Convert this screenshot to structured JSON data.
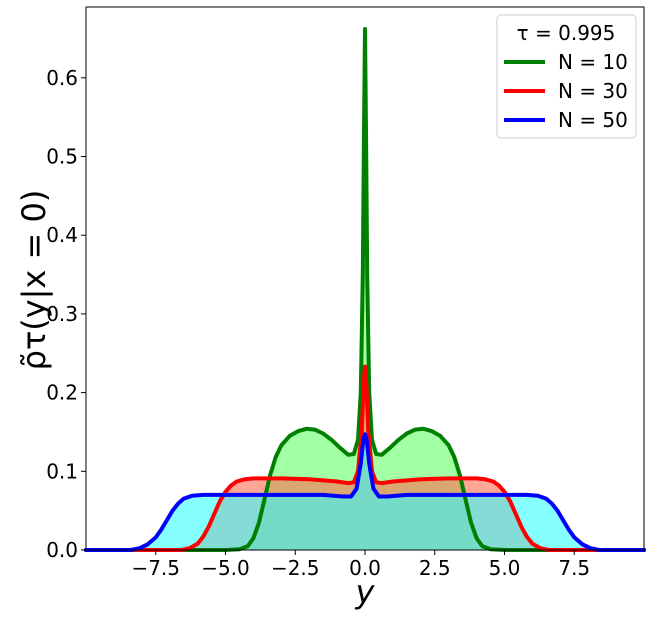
{
  "chart_data": {
    "type": "area",
    "xlabel": "y",
    "ylabel": "ρ̃τ(y|x = 0)",
    "xlim": [
      -10,
      10
    ],
    "ylim": [
      0,
      0.69
    ],
    "x_ticks": [
      -7.5,
      -5.0,
      -2.5,
      0.0,
      2.5,
      5.0,
      7.5
    ],
    "x_tick_labels": [
      "−7.5",
      "−5.0",
      "−2.5",
      "0.0",
      "2.5",
      "5.0",
      "7.5"
    ],
    "y_ticks": [
      0.0,
      0.1,
      0.2,
      0.3,
      0.4,
      0.5,
      0.6
    ],
    "y_tick_labels": [
      "0.0",
      "0.1",
      "0.2",
      "0.3",
      "0.4",
      "0.5",
      "0.6"
    ],
    "grid": false,
    "legend": {
      "placement": "top-right",
      "title": "τ =  0.995",
      "entries": [
        {
          "label": "N = 10",
          "color": "#008000"
        },
        {
          "label": "N = 30",
          "color": "#ff0000"
        },
        {
          "label": "N = 50",
          "color": "#0000ff"
        }
      ]
    },
    "series": [
      {
        "name": "N = 10",
        "color": "#008000",
        "fill": "#66ff66",
        "points": [
          [
            -10,
            0
          ],
          [
            -5,
            0
          ],
          [
            -4.5,
            0.001
          ],
          [
            -4.2,
            0.005
          ],
          [
            -4.0,
            0.015
          ],
          [
            -3.8,
            0.035
          ],
          [
            -3.6,
            0.065
          ],
          [
            -3.4,
            0.095
          ],
          [
            -3.2,
            0.118
          ],
          [
            -3.0,
            0.133
          ],
          [
            -2.7,
            0.145
          ],
          [
            -2.4,
            0.151
          ],
          [
            -2.1,
            0.154
          ],
          [
            -1.8,
            0.153
          ],
          [
            -1.5,
            0.148
          ],
          [
            -1.2,
            0.14
          ],
          [
            -0.9,
            0.13
          ],
          [
            -0.6,
            0.121
          ],
          [
            -0.4,
            0.122
          ],
          [
            -0.25,
            0.14
          ],
          [
            -0.15,
            0.2
          ],
          [
            -0.08,
            0.35
          ],
          [
            -0.04,
            0.52
          ],
          [
            0,
            0.662
          ],
          [
            0.04,
            0.52
          ],
          [
            0.08,
            0.35
          ],
          [
            0.15,
            0.2
          ],
          [
            0.25,
            0.14
          ],
          [
            0.4,
            0.122
          ],
          [
            0.6,
            0.121
          ],
          [
            0.9,
            0.13
          ],
          [
            1.2,
            0.14
          ],
          [
            1.5,
            0.148
          ],
          [
            1.8,
            0.153
          ],
          [
            2.1,
            0.154
          ],
          [
            2.4,
            0.151
          ],
          [
            2.7,
            0.145
          ],
          [
            3.0,
            0.133
          ],
          [
            3.2,
            0.118
          ],
          [
            3.4,
            0.095
          ],
          [
            3.6,
            0.065
          ],
          [
            3.8,
            0.035
          ],
          [
            4.0,
            0.015
          ],
          [
            4.2,
            0.005
          ],
          [
            4.5,
            0.001
          ],
          [
            5,
            0
          ],
          [
            10,
            0
          ]
        ]
      },
      {
        "name": "N = 30",
        "color": "#ff0000",
        "fill": "#ff6a50",
        "points": [
          [
            -10,
            0
          ],
          [
            -6.6,
            0
          ],
          [
            -6.3,
            0.002
          ],
          [
            -6.0,
            0.008
          ],
          [
            -5.8,
            0.017
          ],
          [
            -5.6,
            0.03
          ],
          [
            -5.4,
            0.046
          ],
          [
            -5.2,
            0.062
          ],
          [
            -5.0,
            0.074
          ],
          [
            -4.8,
            0.082
          ],
          [
            -4.6,
            0.087
          ],
          [
            -4.3,
            0.09
          ],
          [
            -4.0,
            0.091
          ],
          [
            -3.0,
            0.091
          ],
          [
            -2.0,
            0.09
          ],
          [
            -1.0,
            0.087
          ],
          [
            -0.6,
            0.085
          ],
          [
            -0.4,
            0.086
          ],
          [
            -0.25,
            0.1
          ],
          [
            -0.12,
            0.15
          ],
          [
            -0.05,
            0.21
          ],
          [
            0,
            0.233
          ],
          [
            0.05,
            0.21
          ],
          [
            0.12,
            0.15
          ],
          [
            0.25,
            0.1
          ],
          [
            0.4,
            0.086
          ],
          [
            0.6,
            0.085
          ],
          [
            1.0,
            0.087
          ],
          [
            2.0,
            0.09
          ],
          [
            3.0,
            0.091
          ],
          [
            4.0,
            0.091
          ],
          [
            4.3,
            0.09
          ],
          [
            4.6,
            0.087
          ],
          [
            4.8,
            0.082
          ],
          [
            5.0,
            0.074
          ],
          [
            5.2,
            0.062
          ],
          [
            5.4,
            0.046
          ],
          [
            5.6,
            0.03
          ],
          [
            5.8,
            0.017
          ],
          [
            6.0,
            0.008
          ],
          [
            6.3,
            0.002
          ],
          [
            6.6,
            0
          ],
          [
            10,
            0
          ]
        ]
      },
      {
        "name": "N = 50",
        "color": "#0000ff",
        "fill": "#33ffff",
        "points": [
          [
            -10,
            0
          ],
          [
            -8.4,
            0
          ],
          [
            -8.1,
            0.002
          ],
          [
            -7.8,
            0.007
          ],
          [
            -7.5,
            0.016
          ],
          [
            -7.3,
            0.026
          ],
          [
            -7.1,
            0.038
          ],
          [
            -6.9,
            0.05
          ],
          [
            -6.7,
            0.059
          ],
          [
            -6.5,
            0.065
          ],
          [
            -6.2,
            0.069
          ],
          [
            -5.8,
            0.07
          ],
          [
            -5.0,
            0.07
          ],
          [
            -3.0,
            0.07
          ],
          [
            -1.5,
            0.07
          ],
          [
            -0.8,
            0.068
          ],
          [
            -0.5,
            0.068
          ],
          [
            -0.3,
            0.078
          ],
          [
            -0.15,
            0.11
          ],
          [
            -0.06,
            0.14
          ],
          [
            0,
            0.147
          ],
          [
            0.06,
            0.14
          ],
          [
            0.15,
            0.11
          ],
          [
            0.3,
            0.078
          ],
          [
            0.5,
            0.068
          ],
          [
            0.8,
            0.068
          ],
          [
            1.5,
            0.07
          ],
          [
            3.0,
            0.07
          ],
          [
            5.0,
            0.07
          ],
          [
            5.8,
            0.07
          ],
          [
            6.2,
            0.069
          ],
          [
            6.5,
            0.065
          ],
          [
            6.7,
            0.059
          ],
          [
            6.9,
            0.05
          ],
          [
            7.1,
            0.038
          ],
          [
            7.3,
            0.026
          ],
          [
            7.5,
            0.016
          ],
          [
            7.8,
            0.007
          ],
          [
            8.1,
            0.002
          ],
          [
            8.4,
            0
          ],
          [
            10,
            0
          ]
        ]
      }
    ]
  }
}
